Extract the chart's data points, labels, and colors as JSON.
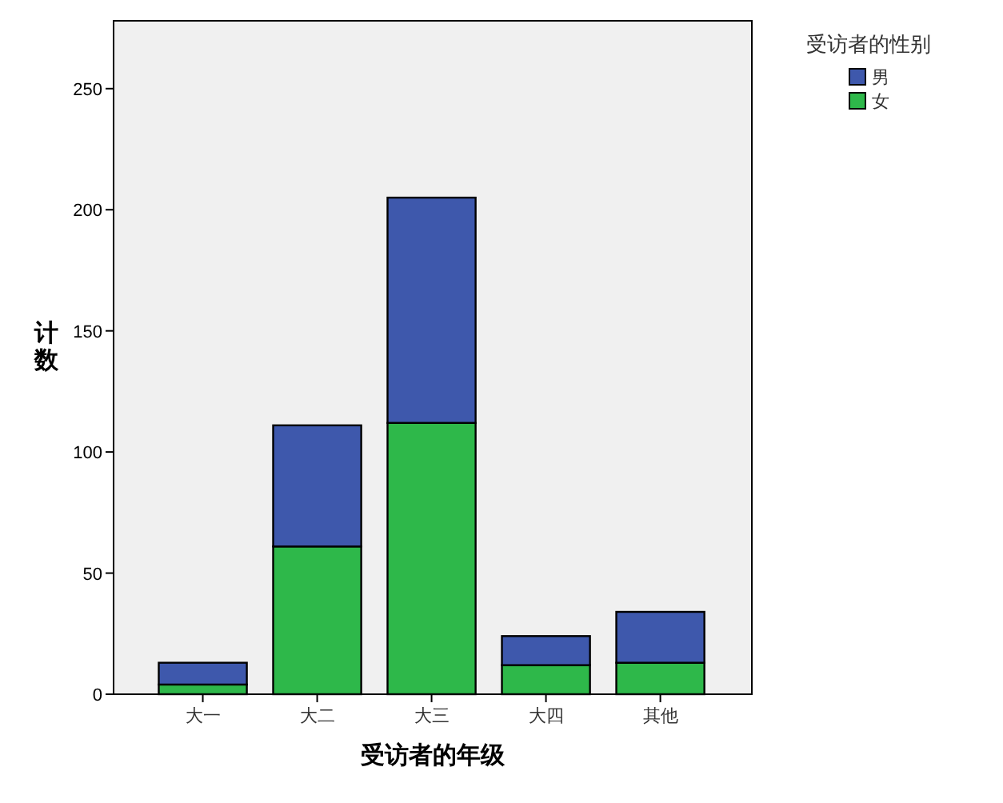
{
  "chart_data": {
    "type": "bar",
    "stacked": true,
    "xlabel": "受访者的年级",
    "ylabel": "计数",
    "legend_title": "受访者的性别",
    "categories": [
      "大一",
      "大二",
      "大三",
      "大四",
      "其他"
    ],
    "series": [
      {
        "name": "女",
        "color": "#2eb84a",
        "values": [
          4,
          61,
          112,
          12,
          13
        ]
      },
      {
        "name": "男",
        "color": "#3e58ac",
        "values": [
          9,
          50,
          93,
          12,
          21
        ]
      }
    ],
    "ylim": [
      0,
      278
    ],
    "yticks": [
      0,
      50,
      100,
      150,
      200,
      250
    ],
    "grid": false,
    "legend": "top right"
  }
}
